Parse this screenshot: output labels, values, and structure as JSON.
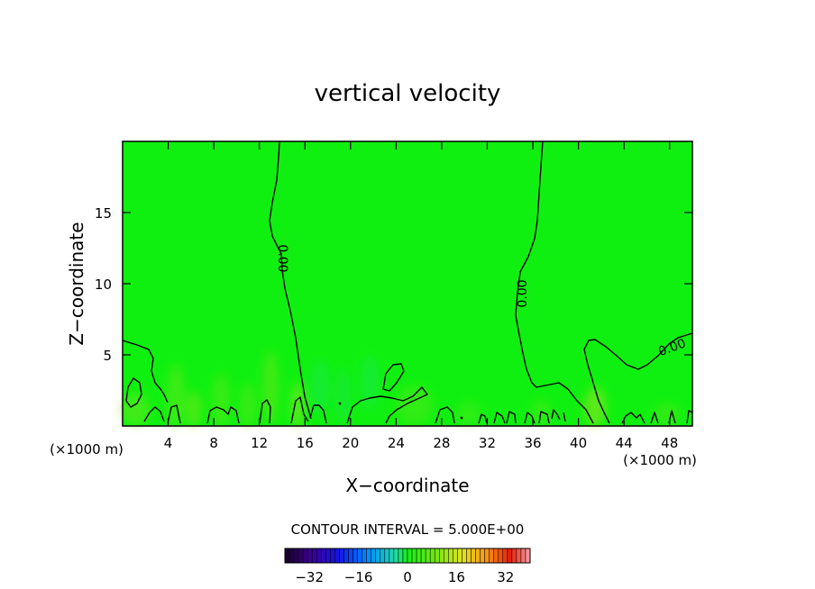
{
  "chart_data": {
    "type": "heatmap",
    "title": "vertical velocity",
    "xlabel": "X−coordinate",
    "ylabel": "Z−coordinate",
    "x_unit_left": "(×1000 m)",
    "x_unit_right": "(×1000 m)",
    "xlim": [
      0,
      50
    ],
    "ylim": [
      0,
      20
    ],
    "xticks": [
      4,
      8,
      12,
      16,
      20,
      24,
      28,
      32,
      36,
      40,
      44,
      48
    ],
    "xtick_labels": [
      "4",
      "8",
      "12",
      "16",
      "20",
      "24",
      "28",
      "32",
      "36",
      "40",
      "44",
      "48"
    ],
    "yticks": [
      5,
      10,
      15
    ],
    "ytick_labels": [
      "5",
      "10",
      "15"
    ],
    "contour_interval_text": "CONTOUR INTERVAL = 5.000E+00",
    "contour_labels": [
      "0.00",
      "0.00",
      "0.00"
    ],
    "field_value_typical": 0,
    "colorbar": {
      "range": [
        -40,
        40
      ],
      "ticks": [
        -32,
        -16,
        0,
        16,
        32
      ],
      "tick_labels": [
        "−32",
        "−16",
        "0",
        "16",
        "32"
      ]
    },
    "colors": {
      "field": "#10f010",
      "contour": "#000000"
    }
  }
}
